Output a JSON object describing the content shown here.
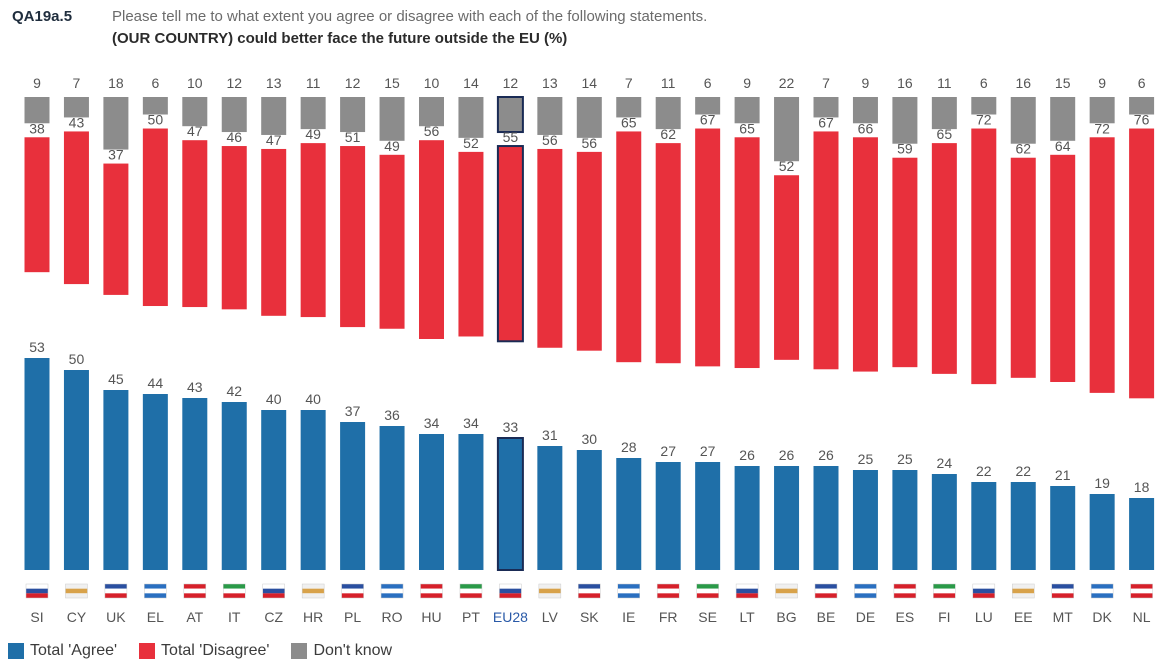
{
  "header": {
    "code": "QA19a.5",
    "question": "Please tell me to what extent you agree or disagree with each of the following statements.",
    "statement": "(OUR COUNTRY) could better face the future outside the EU (%)"
  },
  "colors": {
    "agree": "#1f6fa8",
    "disagree": "#e8303c",
    "dontknow": "#8c8c8c",
    "highlight_border": "#1a2b55",
    "label": "#555555",
    "eu_label": "#2a5aa8"
  },
  "chart_data": {
    "type": "bar",
    "stacked": "separate-columns",
    "categories": [
      "SI",
      "CY",
      "UK",
      "EL",
      "AT",
      "IT",
      "CZ",
      "HR",
      "PL",
      "RO",
      "HU",
      "PT",
      "EU28",
      "LV",
      "SK",
      "IE",
      "FR",
      "SE",
      "LT",
      "BG",
      "BE",
      "DE",
      "ES",
      "FI",
      "LU",
      "EE",
      "MT",
      "DK",
      "NL"
    ],
    "highlight": "EU28",
    "series": [
      {
        "name": "Total 'Agree'",
        "values": [
          53,
          50,
          45,
          44,
          43,
          42,
          40,
          40,
          37,
          36,
          34,
          34,
          33,
          31,
          30,
          28,
          27,
          27,
          26,
          26,
          26,
          25,
          25,
          24,
          22,
          22,
          21,
          19,
          18
        ]
      },
      {
        "name": "Total 'Disagree'",
        "values": [
          38,
          43,
          37,
          50,
          47,
          46,
          47,
          49,
          51,
          49,
          56,
          52,
          55,
          56,
          56,
          65,
          62,
          67,
          65,
          52,
          67,
          66,
          59,
          65,
          72,
          62,
          64,
          72,
          76
        ]
      },
      {
        "name": "Don't know",
        "values": [
          9,
          7,
          18,
          6,
          10,
          12,
          13,
          11,
          12,
          15,
          10,
          14,
          12,
          13,
          14,
          7,
          11,
          6,
          9,
          22,
          7,
          9,
          16,
          11,
          6,
          16,
          15,
          9,
          6
        ]
      }
    ],
    "legend": [
      "Total 'Agree'",
      "Total 'Disagree'",
      "Don't know"
    ],
    "legend_position": "bottom-left"
  }
}
